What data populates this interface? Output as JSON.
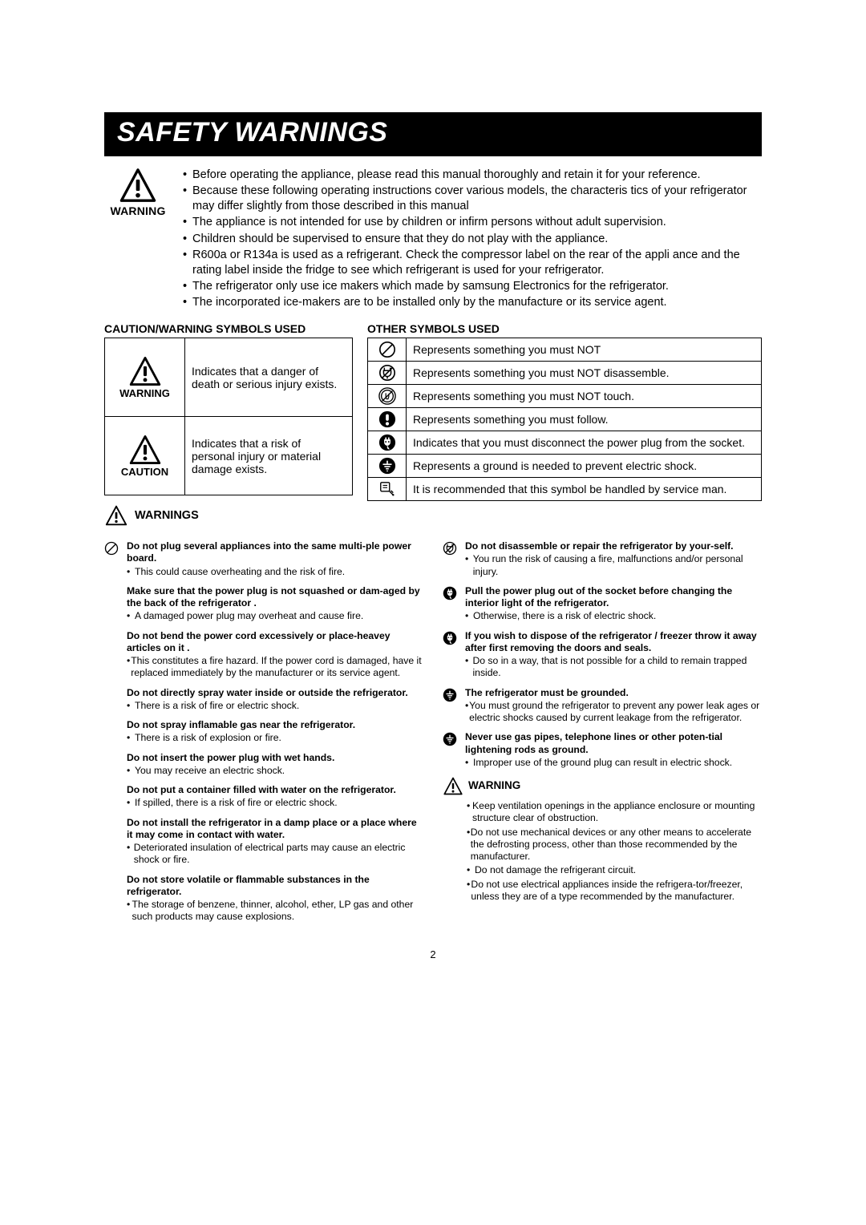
{
  "banner": "SAFETY WARNINGS",
  "warning_label": "WARNING",
  "caution_label": "CAUTION",
  "warnings_label": "WARNINGS",
  "top_bullets": [
    "Before operating the appliance, please read this manual thoroughly and retain it for your reference.",
    "Because these following operating instructions cover various models, the characteris tics of your refrigerator may differ slightly from those described in this manual",
    "The appliance is not intended for use by children or infirm persons without adult supervision.",
    "Children should be supervised to ensure that they do not play with the appliance.",
    "R600a or R134a is used as a refrigerant. Check the compressor label on the rear of the appli ance and the rating label inside the fridge to see which refrigerant is used for your refrigerator.",
    "The refrigerator only use ice makers which made by samsung Electronics for the refrigerator.",
    "The incorporated ice-makers are to be installed only by the manufacture or its service agent."
  ],
  "left_table_header": "CAUTION/WARNING SYMBOLS USED",
  "left_table": {
    "r1": "Indicates that a danger of death or serious injury exists.",
    "r2": "Indicates that a risk of personal injury or material damage exists."
  },
  "right_table_header": "OTHER SYMBOLS USED",
  "right_table": {
    "r1": "Represents something you must NOT",
    "r2": "Represents something you must NOT disassemble.",
    "r3": "Represents something you must NOT touch.",
    "r4": "Represents something you must follow.",
    "r5": "Indicates that you must disconnect the power plug from the socket.",
    "r6": "Represents a ground is needed to prevent electric shock.",
    "r7": "It is recommended that this symbol be handled by service man."
  },
  "left_warnings": [
    {
      "t": "Do not plug several appliances into the same multi-ple power board.",
      "s": "This could cause overheating and the risk of fire.",
      "icon": "slashcircle"
    },
    {
      "t": "Make sure that the power plug is not squashed or dam-aged by the back of the refrigerator .",
      "s": "A damaged power plug may overheat and cause fire.",
      "icon": ""
    },
    {
      "t": "Do not bend the power cord excessively or place-heavey articles on it .",
      "s": "This constitutes a fire hazard. If the power cord is damaged, have it replaced immediately by the manufacturer or its service agent.",
      "icon": ""
    },
    {
      "t": "Do not directly spray water inside or outside the refrigerator.",
      "s": "There is a risk of fire or electric shock.",
      "icon": ""
    },
    {
      "t": "Do not spray inflamable gas near the refrigerator.",
      "s": "There is a risk of explosion or fire.",
      "icon": ""
    },
    {
      "t": "Do not insert the power plug with wet hands.",
      "s": "You may receive an electric shock.",
      "icon": ""
    },
    {
      "t": "Do not put a container filled with water on the refrigerator.",
      "s": "If spilled, there is a risk of fire or electric shock.",
      "icon": ""
    },
    {
      "t": "Do not install the refrigerator in a damp place or a place where it may come in contact with water.",
      "s": "Deteriorated insulation of electrical parts may cause an electric shock or fire.",
      "icon": ""
    },
    {
      "t": "Do not store volatile or flammable substances in the refrigerator.",
      "s": "The storage of benzene, thinner, alcohol, ether, LP gas and other such products may cause explosions.",
      "icon": ""
    }
  ],
  "right_warnings": [
    {
      "t": "Do not disassemble or repair the refrigerator by your-self.",
      "s": "You run the risk of causing a fire, malfunctions and/or personal injury.",
      "icon": "nodis"
    },
    {
      "t": "Pull the power plug out of the socket before changing the interior light of the refrigerator.",
      "s": "Otherwise, there is a risk of electric shock.",
      "icon": "plug"
    },
    {
      "t": "If you wish to dispose of the refrigerator / freezer throw it away after first removing the doors and seals.",
      "s": "Do so in a way, that is not possible for a child to remain trapped inside.",
      "icon": "plug"
    },
    {
      "t": "The refrigerator must be grounded.",
      "s": "You must ground the refrigerator to prevent any power leak ages or electric shocks caused by current leakage from the refrigerator.",
      "icon": "ground"
    },
    {
      "t": "Never use gas pipes, telephone lines or other poten-tial lightening rods as ground.",
      "s": "Improper use of the ground plug can result in electric shock.",
      "icon": "ground"
    }
  ],
  "right_sub_warn_label": "WARNING",
  "right_sub_warn": [
    "Keep ventilation openings in the appliance enclosure or mounting structure clear of obstruction.",
    "Do not use mechanical devices or any other means to accelerate the defrosting process, other than those recommended by the manufacturer.",
    "Do not damage the refrigerant circuit.",
    "Do not use electrical appliances inside the refrigera-tor/freezer, unless they are of a type recommended by the manufacturer."
  ],
  "page_number": "2"
}
